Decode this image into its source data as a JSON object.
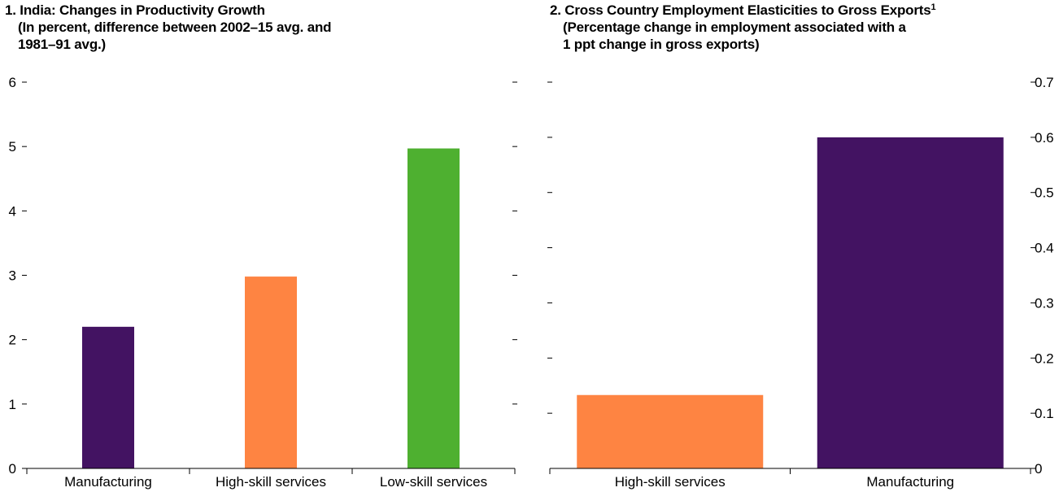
{
  "chart_data": [
    {
      "type": "bar",
      "title": "1. India: Changes in Productivity Growth",
      "subtitle_line1": "(In percent, difference between 2002–15 avg. and",
      "subtitle_line2": "1981–91 avg.)",
      "xlabel": "",
      "ylabel": "",
      "ylim": [
        0,
        6
      ],
      "yticks": [
        0,
        1,
        2,
        3,
        4,
        5,
        6
      ],
      "y_axis_side": "left",
      "grid": false,
      "categories": [
        "Manufacturing",
        "High-skill services",
        "Low-skill services"
      ],
      "values": [
        2.2,
        2.98,
        4.97
      ],
      "colors": [
        "#431362",
        "#fe8442",
        "#4eb030"
      ]
    },
    {
      "type": "bar",
      "title": "2. Cross Country Employment Elasticities to Gross Exports",
      "title_superscript": "1",
      "subtitle_line1": "(Percentage change in employment associated with a",
      "subtitle_line2": "1 ppt change in gross exports)",
      "xlabel": "",
      "ylabel": "",
      "ylim": [
        0,
        0.7
      ],
      "yticks": [
        0,
        0.1,
        0.2,
        0.3,
        0.4,
        0.5,
        0.6,
        0.7
      ],
      "y_axis_side": "right",
      "grid": false,
      "categories": [
        "High-skill services",
        "Manufacturing"
      ],
      "values": [
        0.133,
        0.6
      ],
      "colors": [
        "#fe8442",
        "#431362"
      ]
    }
  ]
}
